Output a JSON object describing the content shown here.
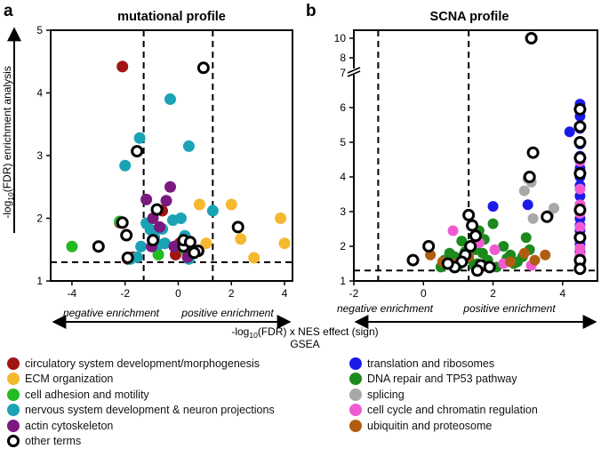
{
  "figure": {
    "x_axis_label_prefix": "-log",
    "x_axis_label_sub": "10",
    "x_axis_label_suffix": "(FDR) x NES effect (sign)",
    "x_axis_sublabel": "GSEA",
    "y_axis_label_prefix": "-log",
    "y_axis_label_sub": "10",
    "y_axis_label_suffix": "(FDR) enrichment analysis",
    "negative_label": "negative enrichment",
    "positive_label": "positive enrichment"
  },
  "colors": {
    "circulatory": "#a01414",
    "ecm": "#f5b82e",
    "adhesion": "#22bb22",
    "neuron": "#1aa3b4",
    "actin": "#7a1a80",
    "other": "#000000",
    "translation": "#1b1be8",
    "dna_repair": "#1c8a1c",
    "splicing": "#a8a8a8",
    "cell_cycle": "#f05ad2",
    "ubiquitin": "#b05d12"
  },
  "legend_left": [
    {
      "key": "circulatory",
      "label": "circulatory system development/morphogenesis",
      "open": false
    },
    {
      "key": "ecm",
      "label": "ECM organization",
      "open": false
    },
    {
      "key": "adhesion",
      "label": "cell adhesion and motility",
      "open": false
    },
    {
      "key": "neuron",
      "label": "nervous system development & neuron projections",
      "open": false
    },
    {
      "key": "actin",
      "label": "actin cytoskeleton",
      "open": false
    },
    {
      "key": "other",
      "label": "other terms",
      "open": true
    }
  ],
  "legend_right": [
    {
      "key": "translation",
      "label": "translation and ribosomes",
      "open": false
    },
    {
      "key": "dna_repair",
      "label": "DNA repair and TP53 pathway",
      "open": false
    },
    {
      "key": "splicing",
      "label": "splicing",
      "open": false
    },
    {
      "key": "cell_cycle",
      "label": "cell cycle and chromatin regulation",
      "open": false
    },
    {
      "key": "ubiquitin",
      "label": "ubiquitin and proteosome",
      "open": false
    }
  ],
  "chart_data": [
    {
      "type": "scatter",
      "panel_letter": "a",
      "title": "mutational profile",
      "xlim": [
        -4.8,
        4.3
      ],
      "ylim": [
        1,
        5
      ],
      "xticks": [
        -4,
        -2,
        0,
        2,
        4
      ],
      "yticks": [
        1,
        2,
        3,
        4,
        5
      ],
      "vlines": [
        -1.3,
        1.3
      ],
      "hline": 1.3,
      "series": [
        {
          "key": "circulatory",
          "open": false,
          "x": [
            -2.1,
            -2.2,
            -1.9,
            -1.7,
            -0.6,
            0.05,
            -0.1,
            -0.5
          ],
          "y": [
            4.42,
            1.93,
            1.35,
            1.38,
            2.12,
            1.6,
            1.42,
            1.6
          ]
        },
        {
          "key": "ecm",
          "open": false,
          "x": [
            0.8,
            1.05,
            2.0,
            2.35,
            3.85,
            4.0,
            2.85
          ],
          "y": [
            2.22,
            1.6,
            2.22,
            1.67,
            2.0,
            1.6,
            1.37
          ]
        },
        {
          "key": "adhesion",
          "open": false,
          "x": [
            -4.0,
            -2.2,
            -0.75,
            0.25
          ],
          "y": [
            1.55,
            1.95,
            1.42,
            1.5
          ]
        },
        {
          "key": "neuron",
          "open": false,
          "x": [
            -1.45,
            -2.0,
            -0.3,
            0.4,
            1.3,
            -1.2,
            -0.9,
            -0.6,
            -1.05,
            -0.75,
            -0.5,
            -0.2,
            0.1,
            -1.4,
            -1.8,
            -1.55,
            0.25,
            0.4
          ],
          "y": [
            3.28,
            2.84,
            3.9,
            3.15,
            2.12,
            1.92,
            1.7,
            1.83,
            1.82,
            1.58,
            1.6,
            1.97,
            2.0,
            1.55,
            1.35,
            1.38,
            1.72,
            1.35
          ]
        },
        {
          "key": "actin",
          "open": false,
          "x": [
            -1.2,
            -0.3,
            -0.45,
            -0.95,
            -0.7,
            -1.0,
            -0.15,
            0.35
          ],
          "y": [
            2.3,
            2.5,
            2.28,
            2.0,
            1.86,
            1.55,
            1.55,
            1.38
          ]
        },
        {
          "key": "other",
          "open": true,
          "x": [
            -3.0,
            -2.1,
            -1.95,
            -1.55,
            -1.9,
            -0.8,
            0.2,
            0.2,
            0.45,
            0.75,
            0.6,
            0.95,
            2.25,
            -0.95
          ],
          "y": [
            1.55,
            1.93,
            1.73,
            3.07,
            1.37,
            2.14,
            1.55,
            1.65,
            1.62,
            1.48,
            1.45,
            4.4,
            1.86,
            1.65
          ]
        }
      ]
    },
    {
      "type": "scatter",
      "panel_letter": "b",
      "title": "SCNA profile",
      "xlim": [
        -2,
        5
      ],
      "ylim": [
        1,
        7
      ],
      "y_axis_break": true,
      "y_upper_ticks": [
        8,
        10
      ],
      "xticks": [
        -2,
        0,
        2,
        4
      ],
      "yticks": [
        1,
        2,
        3,
        4,
        5,
        6,
        7
      ],
      "vlines": [
        -1.3,
        1.3
      ],
      "hline": 1.3,
      "series": [
        {
          "key": "translation",
          "open": false,
          "x": [
            1.0,
            2.0,
            3.0,
            4.2,
            4.5,
            4.5,
            4.5,
            4.5,
            4.5,
            4.5,
            4.5,
            4.5,
            4.5,
            4.5,
            4.5,
            4.5,
            4.5,
            4.5,
            4.5,
            4.5,
            4.5,
            4.5,
            4.5,
            4.5
          ],
          "y": [
            1.6,
            3.15,
            3.2,
            5.3,
            6.1,
            5.75,
            5.4,
            4.95,
            4.6,
            4.25,
            4.0,
            3.75,
            3.45,
            3.2,
            3.0,
            2.8,
            2.6,
            2.45,
            2.25,
            2.05,
            1.85,
            1.65,
            1.5,
            1.35
          ]
        },
        {
          "key": "dna_repair",
          "open": false,
          "x": [
            0.5,
            0.6,
            0.75,
            0.9,
            1.05,
            1.2,
            1.4,
            1.5,
            1.6,
            1.75,
            1.85,
            2.0,
            2.3,
            2.5,
            2.7,
            1.0,
            1.55,
            2.95,
            3.05,
            0.8,
            1.1,
            1.3,
            1.45,
            1.7,
            2.1,
            2.4,
            2.6,
            2.85
          ],
          "y": [
            1.4,
            1.6,
            1.8,
            1.7,
            1.55,
            1.85,
            2.0,
            1.9,
            2.45,
            2.2,
            1.6,
            2.65,
            2.0,
            1.75,
            1.55,
            1.45,
            1.5,
            2.25,
            1.9,
            1.75,
            2.15,
            1.65,
            1.45,
            1.8,
            1.4,
            1.65,
            1.5,
            1.7
          ]
        },
        {
          "key": "splicing",
          "open": false,
          "x": [
            2.9,
            3.0,
            3.1,
            3.15,
            3.75,
            3.6
          ],
          "y": [
            3.6,
            3.95,
            3.85,
            2.8,
            3.1,
            2.9
          ]
        },
        {
          "key": "cell_cycle",
          "open": false,
          "x": [
            0.85,
            1.6,
            2.05,
            2.3,
            3.1,
            4.5,
            4.5,
            4.5,
            4.5,
            4.5,
            4.5,
            4.5,
            4.5,
            4.5,
            4.5,
            4.5
          ],
          "y": [
            2.45,
            2.1,
            1.9,
            1.5,
            1.45,
            4.45,
            4.1,
            3.65,
            3.2,
            2.95,
            2.55,
            2.25,
            1.95,
            1.75,
            1.55,
            1.4
          ]
        },
        {
          "key": "ubiquitin",
          "open": false,
          "x": [
            0.2,
            0.55,
            0.95,
            1.3,
            2.5,
            2.9,
            3.2,
            3.5
          ],
          "y": [
            1.75,
            1.55,
            1.5,
            1.7,
            1.55,
            1.8,
            1.6,
            1.75
          ]
        },
        {
          "key": "other",
          "open": true,
          "x": [
            0.15,
            -0.3,
            1.3,
            1.4,
            1.5,
            1.35,
            1.2,
            1.1,
            0.9,
            0.7,
            1.65,
            1.9,
            1.55,
            3.15,
            3.05,
            3.55,
            4.5,
            4.5,
            4.5,
            4.5,
            4.5,
            4.5,
            4.5,
            4.5,
            4.5
          ],
          "y": [
            2.0,
            1.6,
            2.9,
            2.6,
            2.3,
            2.0,
            1.75,
            1.55,
            1.4,
            1.5,
            1.45,
            1.4,
            1.3,
            4.7,
            4.0,
            2.85,
            5.95,
            5.45,
            5.0,
            4.55,
            4.1,
            3.05,
            2.25,
            1.6,
            1.35
          ]
        },
        {
          "key": "other",
          "open": true,
          "x": [
            3.1
          ],
          "y": [
            10.0
          ]
        }
      ]
    }
  ]
}
